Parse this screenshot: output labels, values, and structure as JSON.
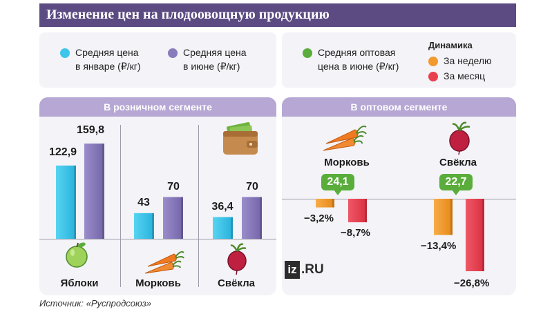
{
  "header": {
    "title": "Изменение цен на плодоовощную продукцию"
  },
  "legend": {
    "jan": {
      "line1": "Средняя цена",
      "line2": "в январе (₽/кг)"
    },
    "jun": {
      "line1": "Средняя цена",
      "line2": "в июне (₽/кг)"
    },
    "wholesale": {
      "line1": "Средняя оптовая",
      "line2": "цена в июне (₽/кг)"
    },
    "dynamics_title": "Динамика",
    "week": "За неделю",
    "month": "За месяц"
  },
  "colors": {
    "jan": "#3ec5ea",
    "jun": "#8a7bbd",
    "wholesale": "#5aad3b",
    "week": "#f29a2e",
    "month": "#e8404f",
    "header": "#5c4b82",
    "section_head": "#b6a7d4"
  },
  "icons": [
    "wallet-icon",
    "apple-icon",
    "carrot-icon",
    "beet-icon"
  ],
  "retail": {
    "title": "В розничном сегменте"
  },
  "wholesale": {
    "title": "В оптовом сегменте"
  },
  "source": "Источник: «Руспродсоюз»",
  "logo": {
    "iz": "iz",
    "ru": ".RU"
  },
  "chart_data": [
    {
      "type": "bar",
      "title": "В розничном сегменте",
      "categories": [
        "Яблоки",
        "Морковь",
        "Свёкла"
      ],
      "series": [
        {
          "name": "Средняя цена в январе (₽/кг)",
          "values": [
            122.9,
            43,
            36.4
          ],
          "labels": [
            "122,9",
            "43",
            "36,4"
          ]
        },
        {
          "name": "Средняя цена в июне (₽/кг)",
          "values": [
            159.8,
            70,
            70
          ],
          "labels": [
            "159,8",
            "70",
            "70"
          ]
        }
      ],
      "ylim": [
        0,
        170
      ]
    },
    {
      "type": "bar",
      "title": "В оптовом сегменте",
      "categories": [
        "Морковь",
        "Свёкла"
      ],
      "wholesale_price": {
        "name": "Средняя оптовая цена в июне (₽/кг)",
        "values": [
          24.1,
          22.7
        ],
        "labels": [
          "24,1",
          "22,7"
        ]
      },
      "series": [
        {
          "name": "За неделю",
          "values": [
            -3.2,
            -13.4
          ],
          "labels": [
            "−3,2%",
            "−13,4%"
          ]
        },
        {
          "name": "За месяц",
          "values": [
            -8.7,
            -26.8
          ],
          "labels": [
            "−8,7%",
            "−26,8%"
          ]
        }
      ],
      "ylim": [
        -28,
        0
      ]
    }
  ]
}
